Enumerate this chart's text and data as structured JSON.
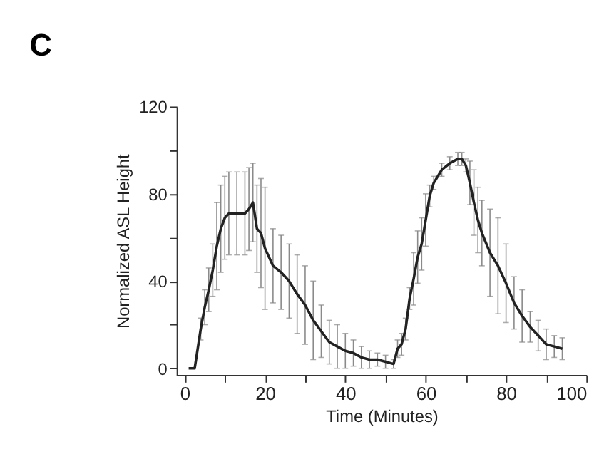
{
  "chart_data": {
    "type": "line",
    "title": "C",
    "xlabel": "Time (Minutes)",
    "ylabel": "Normalized ASL Height",
    "xlim": [
      -2,
      100
    ],
    "xticks": [
      0,
      {
        "value": 10,
        "label": null
      },
      20,
      {
        "value": 30,
        "label": null
      },
      40,
      {
        "value": 50,
        "label": null
      },
      60,
      {
        "value": 70,
        "label": null
      },
      80,
      {
        "value": 90,
        "label": null
      },
      100
    ],
    "ylim": [
      -3,
      120
    ],
    "yticks": [
      0,
      {
        "value": 20,
        "label": null
      },
      40,
      {
        "value": 60,
        "label": null
      },
      80,
      {
        "value": 100,
        "label": null
      },
      120
    ],
    "grid": false,
    "marker": "none",
    "line_style": "solid",
    "series": [
      {
        "color": "#222222",
        "x": [
          1,
          2.5,
          4,
          5,
          6,
          7,
          8,
          9,
          10,
          11,
          13,
          15,
          16,
          17,
          18,
          19,
          20,
          22,
          24,
          26,
          28,
          30,
          32,
          34,
          36,
          38,
          40,
          42,
          44,
          46,
          48,
          50,
          52,
          53,
          54,
          55,
          56,
          57,
          58,
          59,
          60,
          61,
          62,
          64,
          66,
          68,
          69,
          70,
          71,
          72,
          73,
          74,
          76,
          78,
          80,
          82,
          84,
          86,
          88,
          90,
          92,
          94
        ],
        "values": [
          0,
          0,
          18,
          28,
          36,
          45,
          56,
          64,
          69,
          71,
          71,
          71,
          73,
          76,
          64,
          62,
          55,
          47,
          44,
          40,
          34,
          29,
          22,
          17,
          12,
          10,
          8,
          7,
          5,
          4,
          4,
          3,
          2,
          9,
          11,
          18,
          32,
          41,
          51,
          57,
          68,
          79,
          85,
          91,
          94,
          96,
          96,
          93,
          85,
          76,
          68,
          62,
          53,
          47,
          39,
          30,
          24,
          19,
          15,
          11,
          10,
          9
        ],
        "errors": [
          null,
          null,
          5,
          8,
          10,
          12,
          20,
          20,
          19,
          19,
          19,
          19,
          19,
          18,
          20,
          25,
          28,
          17,
          17,
          17,
          18,
          18,
          18,
          12,
          10,
          10,
          8,
          6,
          5,
          4,
          3,
          3,
          2,
          4,
          5,
          5,
          5,
          12,
          12,
          12,
          12,
          5,
          3,
          3,
          3,
          3,
          3,
          3,
          10,
          15,
          15,
          15,
          20,
          22,
          18,
          12,
          12,
          7,
          7,
          7,
          5,
          5
        ]
      }
    ]
  }
}
